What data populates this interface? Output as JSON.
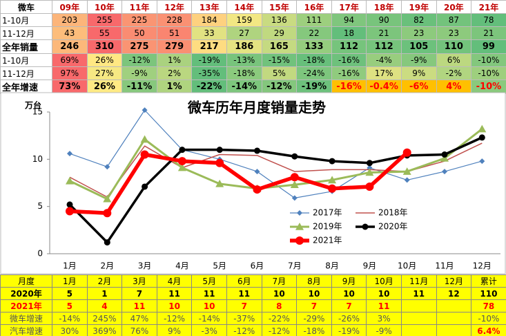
{
  "top_table": {
    "header": [
      "微车",
      "09年",
      "10年",
      "11年",
      "12年",
      "13年",
      "14年",
      "15年",
      "16年",
      "17年",
      "18年",
      "19年",
      "20年",
      "21年"
    ],
    "rows": [
      {
        "label": "1-10月",
        "cells": [
          "203",
          "255",
          "225",
          "228",
          "184",
          "159",
          "136",
          "111",
          "94",
          "90",
          "82",
          "87",
          "78"
        ]
      },
      {
        "label": "11-12月",
        "cells": [
          "43",
          "55",
          "50",
          "51",
          "33",
          "27",
          "29",
          "22",
          "18",
          "21",
          "23",
          "23",
          "21"
        ]
      },
      {
        "label": "全年销量",
        "cells": [
          "246",
          "310",
          "275",
          "279",
          "217",
          "186",
          "165",
          "133",
          "112",
          "112",
          "105",
          "110",
          "99"
        ]
      },
      {
        "label": "1-10月",
        "cells": [
          "69%",
          "26%",
          "-12%",
          "1%",
          "-19%",
          "-13%",
          "-15%",
          "-18%",
          "-16%",
          "-4%",
          "-9%",
          "6%",
          "-10%"
        ]
      },
      {
        "label": "11-12月",
        "cells": [
          "97%",
          "27%",
          "-9%",
          "2%",
          "-35%",
          "-18%",
          "5%",
          "-24%",
          "-16%",
          "17%",
          "9%",
          "-2%",
          "-10%"
        ]
      },
      {
        "label": "全年增速",
        "cells": [
          "73%",
          "26%",
          "-11%",
          "1%",
          "-22%",
          "-14%",
          "-12%",
          "-19%",
          "-16%",
          "-0.4%",
          "-6%",
          "4%",
          "-10%"
        ]
      }
    ]
  },
  "chart_data": {
    "type": "line",
    "title": "微车历年月度销量走势",
    "y_label": "万台",
    "categories": [
      "1月",
      "2月",
      "3月",
      "4月",
      "5月",
      "6月",
      "7月",
      "8月",
      "9月",
      "10月",
      "11月",
      "12月"
    ],
    "ylim": [
      0,
      15
    ],
    "yticks": [
      0,
      5,
      10,
      15
    ],
    "series": [
      {
        "name": "2017年",
        "color": "#4f81bd",
        "values": [
          10.6,
          9.2,
          15.2,
          11.0,
          10.0,
          8.7,
          5.9,
          6.6,
          9.1,
          7.8,
          8.7,
          9.8
        ]
      },
      {
        "name": "2018年",
        "color": "#c0504d",
        "values": [
          8.1,
          6.0,
          11.4,
          9.1,
          10.5,
          10.4,
          8.7,
          8.9,
          8.9,
          8.7,
          9.8,
          11.7
        ]
      },
      {
        "name": "2019年",
        "color": "#9bbb59",
        "values": [
          7.7,
          5.8,
          12.1,
          9.1,
          7.4,
          6.9,
          7.3,
          7.8,
          8.6,
          8.7,
          10.1,
          13.2
        ]
      },
      {
        "name": "2020年",
        "color": "#000000",
        "values": [
          5.2,
          1.2,
          7.1,
          11.0,
          11.0,
          10.9,
          10.3,
          9.8,
          9.6,
          10.4,
          10.5,
          12.3
        ]
      },
      {
        "name": "2021年",
        "color": "#ff0000",
        "values": [
          4.5,
          4.3,
          10.5,
          9.8,
          9.6,
          6.8,
          8.1,
          6.9,
          7.1,
          10.7,
          null,
          null
        ]
      }
    ]
  },
  "bottom_table": {
    "header": [
      "月度",
      "1月",
      "2月",
      "3月",
      "4月",
      "5月",
      "6月",
      "7月",
      "8月",
      "9月",
      "10月",
      "11月",
      "12月",
      "累计"
    ],
    "rows": [
      {
        "label": "2020年",
        "cells": [
          "5",
          "1",
          "7",
          "11",
          "11",
          "11",
          "10",
          "10",
          "10",
          "10",
          "11",
          "12",
          "110"
        ]
      },
      {
        "label": "2021年",
        "cells": [
          "5",
          "4",
          "11",
          "10",
          "10",
          "7",
          "8",
          "7",
          "7",
          "11",
          null,
          null,
          "78"
        ]
      },
      {
        "label": "微车增速",
        "cells": [
          "-14%",
          "245%",
          "47%",
          "-12%",
          "-14%",
          "-37%",
          "-22%",
          "-29%",
          "-26%",
          "3%",
          null,
          null,
          "-10%"
        ]
      },
      {
        "label": "汽车增速",
        "cells": [
          "30%",
          "369%",
          "76%",
          "9%",
          "-3%",
          "-12%",
          "-12%",
          "-18%",
          "-19%",
          "-9%",
          null,
          null,
          "6.4%"
        ]
      }
    ]
  }
}
